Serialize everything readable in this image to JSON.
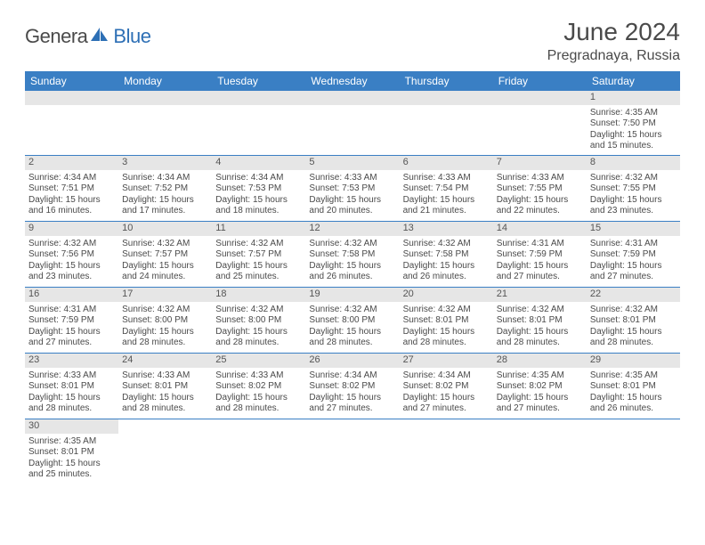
{
  "logo": {
    "part1": "Genera",
    "part2": "Blue"
  },
  "title": "June 2024",
  "location": "Pregradnaya, Russia",
  "colors": {
    "header_bg": "#3a7fc4",
    "header_fg": "#ffffff",
    "daynum_bg": "#e6e6e6",
    "rule": "#3a7fc4",
    "text": "#4a4a4a",
    "logo_accent": "#2d6fb5"
  },
  "weekdays": [
    "Sunday",
    "Monday",
    "Tuesday",
    "Wednesday",
    "Thursday",
    "Friday",
    "Saturday"
  ],
  "weeks": [
    [
      {
        "day": "",
        "sunrise": "",
        "sunset": "",
        "daylight": ""
      },
      {
        "day": "",
        "sunrise": "",
        "sunset": "",
        "daylight": ""
      },
      {
        "day": "",
        "sunrise": "",
        "sunset": "",
        "daylight": ""
      },
      {
        "day": "",
        "sunrise": "",
        "sunset": "",
        "daylight": ""
      },
      {
        "day": "",
        "sunrise": "",
        "sunset": "",
        "daylight": ""
      },
      {
        "day": "",
        "sunrise": "",
        "sunset": "",
        "daylight": ""
      },
      {
        "day": "1",
        "sunrise": "Sunrise: 4:35 AM",
        "sunset": "Sunset: 7:50 PM",
        "daylight": "Daylight: 15 hours and 15 minutes."
      }
    ],
    [
      {
        "day": "2",
        "sunrise": "Sunrise: 4:34 AM",
        "sunset": "Sunset: 7:51 PM",
        "daylight": "Daylight: 15 hours and 16 minutes."
      },
      {
        "day": "3",
        "sunrise": "Sunrise: 4:34 AM",
        "sunset": "Sunset: 7:52 PM",
        "daylight": "Daylight: 15 hours and 17 minutes."
      },
      {
        "day": "4",
        "sunrise": "Sunrise: 4:34 AM",
        "sunset": "Sunset: 7:53 PM",
        "daylight": "Daylight: 15 hours and 18 minutes."
      },
      {
        "day": "5",
        "sunrise": "Sunrise: 4:33 AM",
        "sunset": "Sunset: 7:53 PM",
        "daylight": "Daylight: 15 hours and 20 minutes."
      },
      {
        "day": "6",
        "sunrise": "Sunrise: 4:33 AM",
        "sunset": "Sunset: 7:54 PM",
        "daylight": "Daylight: 15 hours and 21 minutes."
      },
      {
        "day": "7",
        "sunrise": "Sunrise: 4:33 AM",
        "sunset": "Sunset: 7:55 PM",
        "daylight": "Daylight: 15 hours and 22 minutes."
      },
      {
        "day": "8",
        "sunrise": "Sunrise: 4:32 AM",
        "sunset": "Sunset: 7:55 PM",
        "daylight": "Daylight: 15 hours and 23 minutes."
      }
    ],
    [
      {
        "day": "9",
        "sunrise": "Sunrise: 4:32 AM",
        "sunset": "Sunset: 7:56 PM",
        "daylight": "Daylight: 15 hours and 23 minutes."
      },
      {
        "day": "10",
        "sunrise": "Sunrise: 4:32 AM",
        "sunset": "Sunset: 7:57 PM",
        "daylight": "Daylight: 15 hours and 24 minutes."
      },
      {
        "day": "11",
        "sunrise": "Sunrise: 4:32 AM",
        "sunset": "Sunset: 7:57 PM",
        "daylight": "Daylight: 15 hours and 25 minutes."
      },
      {
        "day": "12",
        "sunrise": "Sunrise: 4:32 AM",
        "sunset": "Sunset: 7:58 PM",
        "daylight": "Daylight: 15 hours and 26 minutes."
      },
      {
        "day": "13",
        "sunrise": "Sunrise: 4:32 AM",
        "sunset": "Sunset: 7:58 PM",
        "daylight": "Daylight: 15 hours and 26 minutes."
      },
      {
        "day": "14",
        "sunrise": "Sunrise: 4:31 AM",
        "sunset": "Sunset: 7:59 PM",
        "daylight": "Daylight: 15 hours and 27 minutes."
      },
      {
        "day": "15",
        "sunrise": "Sunrise: 4:31 AM",
        "sunset": "Sunset: 7:59 PM",
        "daylight": "Daylight: 15 hours and 27 minutes."
      }
    ],
    [
      {
        "day": "16",
        "sunrise": "Sunrise: 4:31 AM",
        "sunset": "Sunset: 7:59 PM",
        "daylight": "Daylight: 15 hours and 27 minutes."
      },
      {
        "day": "17",
        "sunrise": "Sunrise: 4:32 AM",
        "sunset": "Sunset: 8:00 PM",
        "daylight": "Daylight: 15 hours and 28 minutes."
      },
      {
        "day": "18",
        "sunrise": "Sunrise: 4:32 AM",
        "sunset": "Sunset: 8:00 PM",
        "daylight": "Daylight: 15 hours and 28 minutes."
      },
      {
        "day": "19",
        "sunrise": "Sunrise: 4:32 AM",
        "sunset": "Sunset: 8:00 PM",
        "daylight": "Daylight: 15 hours and 28 minutes."
      },
      {
        "day": "20",
        "sunrise": "Sunrise: 4:32 AM",
        "sunset": "Sunset: 8:01 PM",
        "daylight": "Daylight: 15 hours and 28 minutes."
      },
      {
        "day": "21",
        "sunrise": "Sunrise: 4:32 AM",
        "sunset": "Sunset: 8:01 PM",
        "daylight": "Daylight: 15 hours and 28 minutes."
      },
      {
        "day": "22",
        "sunrise": "Sunrise: 4:32 AM",
        "sunset": "Sunset: 8:01 PM",
        "daylight": "Daylight: 15 hours and 28 minutes."
      }
    ],
    [
      {
        "day": "23",
        "sunrise": "Sunrise: 4:33 AM",
        "sunset": "Sunset: 8:01 PM",
        "daylight": "Daylight: 15 hours and 28 minutes."
      },
      {
        "day": "24",
        "sunrise": "Sunrise: 4:33 AM",
        "sunset": "Sunset: 8:01 PM",
        "daylight": "Daylight: 15 hours and 28 minutes."
      },
      {
        "day": "25",
        "sunrise": "Sunrise: 4:33 AM",
        "sunset": "Sunset: 8:02 PM",
        "daylight": "Daylight: 15 hours and 28 minutes."
      },
      {
        "day": "26",
        "sunrise": "Sunrise: 4:34 AM",
        "sunset": "Sunset: 8:02 PM",
        "daylight": "Daylight: 15 hours and 27 minutes."
      },
      {
        "day": "27",
        "sunrise": "Sunrise: 4:34 AM",
        "sunset": "Sunset: 8:02 PM",
        "daylight": "Daylight: 15 hours and 27 minutes."
      },
      {
        "day": "28",
        "sunrise": "Sunrise: 4:35 AM",
        "sunset": "Sunset: 8:02 PM",
        "daylight": "Daylight: 15 hours and 27 minutes."
      },
      {
        "day": "29",
        "sunrise": "Sunrise: 4:35 AM",
        "sunset": "Sunset: 8:01 PM",
        "daylight": "Daylight: 15 hours and 26 minutes."
      }
    ],
    [
      {
        "day": "30",
        "sunrise": "Sunrise: 4:35 AM",
        "sunset": "Sunset: 8:01 PM",
        "daylight": "Daylight: 15 hours and 25 minutes."
      },
      {
        "day": "",
        "sunrise": "",
        "sunset": "",
        "daylight": ""
      },
      {
        "day": "",
        "sunrise": "",
        "sunset": "",
        "daylight": ""
      },
      {
        "day": "",
        "sunrise": "",
        "sunset": "",
        "daylight": ""
      },
      {
        "day": "",
        "sunrise": "",
        "sunset": "",
        "daylight": ""
      },
      {
        "day": "",
        "sunrise": "",
        "sunset": "",
        "daylight": ""
      },
      {
        "day": "",
        "sunrise": "",
        "sunset": "",
        "daylight": ""
      }
    ]
  ]
}
